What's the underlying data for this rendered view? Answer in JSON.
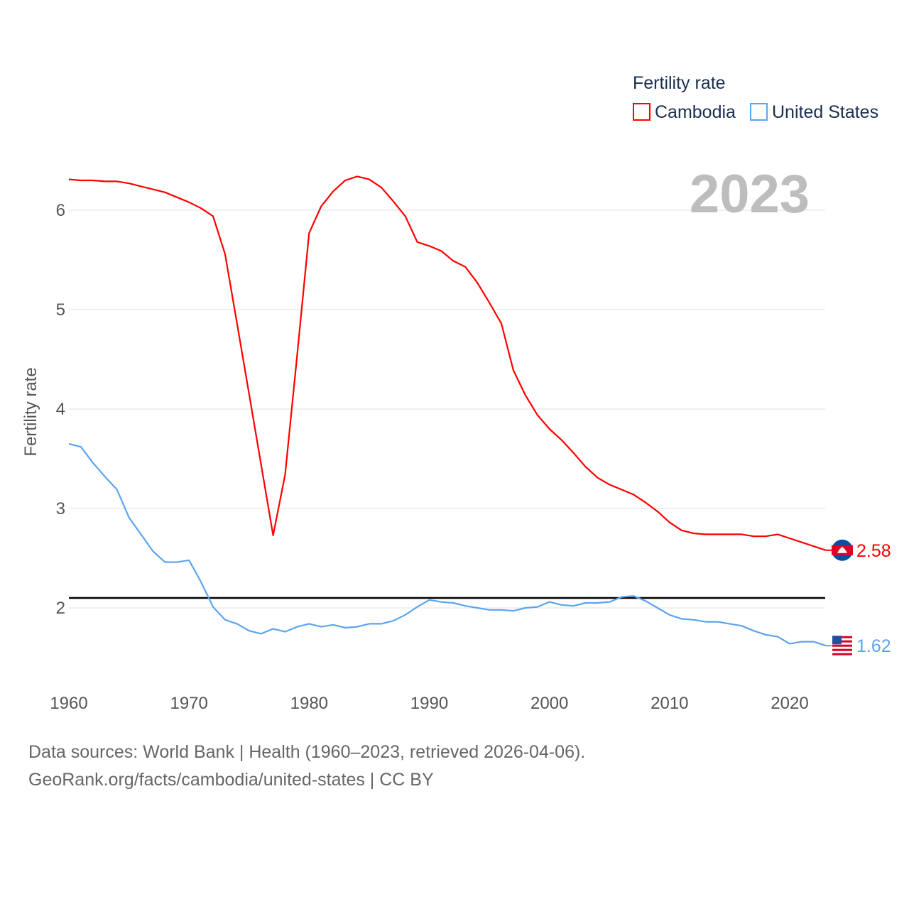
{
  "chart_data": {
    "type": "line",
    "title": "",
    "xlabel": "",
    "ylabel": "Fertility rate",
    "xlim": [
      1960,
      2023
    ],
    "ylim": [
      1.5,
      6.5
    ],
    "x_ticks": [
      "1960",
      "1970",
      "1980",
      "1990",
      "2000",
      "2010",
      "2020"
    ],
    "y_ticks": [
      "2",
      "3",
      "4",
      "5",
      "6"
    ],
    "grid": true,
    "year_label": "2023",
    "legend": {
      "title": "Fertility rate",
      "placement": "top-right"
    },
    "reference_line": 2.1,
    "x": [
      1960,
      1961,
      1962,
      1963,
      1964,
      1965,
      1966,
      1967,
      1968,
      1969,
      1970,
      1971,
      1972,
      1973,
      1974,
      1975,
      1976,
      1977,
      1978,
      1979,
      1980,
      1981,
      1982,
      1983,
      1984,
      1985,
      1986,
      1987,
      1988,
      1989,
      1990,
      1991,
      1992,
      1993,
      1994,
      1995,
      1996,
      1997,
      1998,
      1999,
      2000,
      2001,
      2002,
      2003,
      2004,
      2005,
      2006,
      2007,
      2008,
      2009,
      2010,
      2011,
      2012,
      2013,
      2014,
      2015,
      2016,
      2017,
      2018,
      2019,
      2020,
      2021,
      2022,
      2023
    ],
    "series": [
      {
        "name": "Cambodia",
        "color": "#ff0000",
        "end_label": "2.58",
        "values": [
          6.31,
          6.3,
          6.3,
          6.29,
          6.29,
          6.27,
          6.24,
          6.21,
          6.18,
          6.13,
          6.08,
          6.02,
          5.94,
          5.56,
          4.86,
          4.15,
          3.44,
          2.73,
          3.34,
          4.54,
          5.77,
          6.04,
          6.19,
          6.3,
          6.34,
          6.31,
          6.23,
          6.09,
          5.94,
          5.68,
          5.64,
          5.59,
          5.49,
          5.43,
          5.27,
          5.07,
          4.86,
          4.39,
          4.14,
          3.94,
          3.8,
          3.69,
          3.56,
          3.42,
          3.31,
          3.24,
          3.19,
          3.14,
          3.06,
          2.97,
          2.86,
          2.78,
          2.75,
          2.74,
          2.74,
          2.74,
          2.74,
          2.72,
          2.72,
          2.74,
          2.7,
          2.66,
          2.62,
          2.58
        ]
      },
      {
        "name": "United States",
        "color": "#5ba4ee",
        "end_label": "1.62",
        "values": [
          3.65,
          3.62,
          3.46,
          3.32,
          3.19,
          2.91,
          2.74,
          2.57,
          2.46,
          2.46,
          2.48,
          2.26,
          2.01,
          1.88,
          1.84,
          1.77,
          1.74,
          1.79,
          1.76,
          1.81,
          1.84,
          1.81,
          1.83,
          1.8,
          1.81,
          1.84,
          1.84,
          1.87,
          1.93,
          2.01,
          2.08,
          2.06,
          2.05,
          2.02,
          2.0,
          1.98,
          1.98,
          1.97,
          2.0,
          2.01,
          2.06,
          2.03,
          2.02,
          2.05,
          2.05,
          2.06,
          2.11,
          2.12,
          2.07,
          2.0,
          1.93,
          1.89,
          1.88,
          1.86,
          1.86,
          1.84,
          1.82,
          1.77,
          1.73,
          1.71,
          1.64,
          1.66,
          1.66,
          1.62
        ]
      }
    ]
  },
  "footer": {
    "line1": "Data sources: World Bank | Health (1960–2023, retrieved 2026-04-06).",
    "line2": "GeoRank.org/facts/cambodia/united-states | CC BY"
  }
}
